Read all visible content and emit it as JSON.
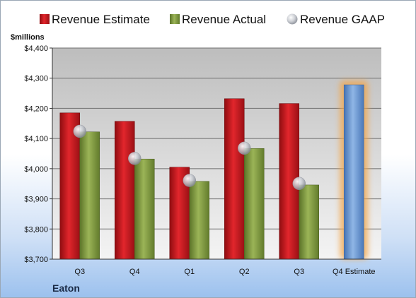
{
  "company": "Eaton",
  "chart_data": {
    "type": "bar",
    "unit_label": "$millions",
    "categories": [
      "Q3",
      "Q4",
      "Q1",
      "Q2",
      "Q3",
      "Q4 Estimate"
    ],
    "series": [
      {
        "name": "Revenue Estimate",
        "type": "bar",
        "color": "#c8171d",
        "values": [
          4185,
          4157,
          4005,
          4232,
          4216,
          null
        ]
      },
      {
        "name": "Revenue Actual",
        "type": "bar",
        "color": "#7f9a3e",
        "values": [
          4122,
          4032,
          3958,
          4067,
          3946,
          null
        ]
      },
      {
        "name": "Revenue GAAP",
        "type": "marker",
        "color": "#b8bcc4",
        "values": [
          4124,
          4034,
          3961,
          4068,
          3951,
          null
        ]
      }
    ],
    "forecast": {
      "category": "Q4 Estimate",
      "value": 4278,
      "color": "#5b8fd0",
      "glow": "#f3a64a"
    },
    "ylim": [
      3700,
      4400
    ],
    "yticks": [
      3700,
      3800,
      3900,
      4000,
      4100,
      4200,
      4300,
      4400
    ],
    "ytick_labels": [
      "$3,700",
      "$3,800",
      "$3,900",
      "$4,000",
      "$4,100",
      "$4,200",
      "$4,300",
      "$4,400"
    ],
    "legend": {
      "position": "top"
    },
    "grid": true
  }
}
